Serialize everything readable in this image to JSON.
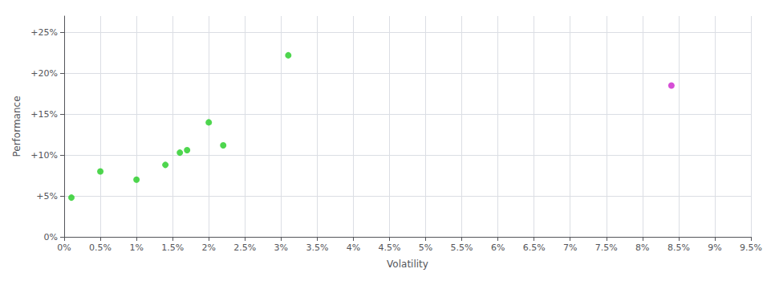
{
  "chart_data": {
    "type": "scatter",
    "xlabel": "Volatility",
    "ylabel": "Performance",
    "series": [
      {
        "color": "#22cc22",
        "x": [
          0.001,
          0.005,
          0.01,
          0.014,
          0.016,
          0.017,
          0.02,
          0.022,
          0.031
        ],
        "values": [
          0.048,
          0.08,
          0.07,
          0.088,
          0.103,
          0.106,
          0.14,
          0.112,
          0.222
        ]
      },
      {
        "color": "#cc22cc",
        "x": [
          0.084
        ],
        "values": [
          0.185
        ]
      }
    ],
    "xlim": [
      0.0,
      0.095
    ],
    "ylim": [
      0.0,
      0.27
    ],
    "xticks": [
      {
        "value": 0.0,
        "label": "0%"
      },
      {
        "value": 0.005,
        "label": "0.5%"
      },
      {
        "value": 0.01,
        "label": "1%"
      },
      {
        "value": 0.015,
        "label": "1.5%"
      },
      {
        "value": 0.02,
        "label": "2%"
      },
      {
        "value": 0.025,
        "label": "2.5%"
      },
      {
        "value": 0.03,
        "label": "3%"
      },
      {
        "value": 0.035,
        "label": "3.5%"
      },
      {
        "value": 0.04,
        "label": "4%"
      },
      {
        "value": 0.045,
        "label": "4.5%"
      },
      {
        "value": 0.05,
        "label": "5%"
      },
      {
        "value": 0.055,
        "label": "5.5%"
      },
      {
        "value": 0.06,
        "label": "6%"
      },
      {
        "value": 0.065,
        "label": "6.5%"
      },
      {
        "value": 0.07,
        "label": "7%"
      },
      {
        "value": 0.075,
        "label": "7.5%"
      },
      {
        "value": 0.08,
        "label": "8%"
      },
      {
        "value": 0.085,
        "label": "8.5%"
      },
      {
        "value": 0.09,
        "label": "9%"
      },
      {
        "value": 0.095,
        "label": "9.5%"
      }
    ],
    "yticks": [
      {
        "value": 0.0,
        "label": "0%"
      },
      {
        "value": 0.05,
        "label": "+5%"
      },
      {
        "value": 0.1,
        "label": "+10%"
      },
      {
        "value": 0.15,
        "label": "+15%"
      },
      {
        "value": 0.2,
        "label": "+20%"
      },
      {
        "value": 0.25,
        "label": "+25%"
      }
    ],
    "grid": true
  }
}
